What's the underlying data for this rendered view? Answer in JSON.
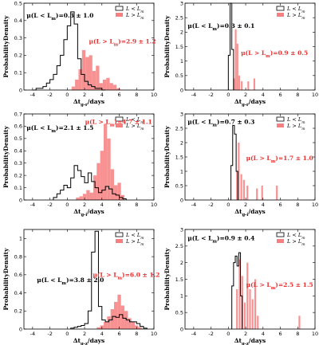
{
  "colors": {
    "low": "#000000",
    "high": "#f77f7f",
    "high_text": "#e8302f"
  },
  "chart_data": [
    {
      "type": "histogram",
      "xlim": [
        -5,
        10
      ],
      "ylim": [
        0,
        0.5
      ],
      "xticks": [
        -4,
        -2,
        0,
        2,
        4,
        6,
        8,
        10
      ],
      "yticks": [
        0,
        0.1,
        0.2,
        0.3,
        0.4,
        0.5
      ],
      "xlabel": "Δt_{g-r}/days",
      "ylabel": "ProbabilityDensity",
      "legend": [
        "L < L_m",
        "L > L_m"
      ],
      "annotations": [
        "μ(L < L_m)=0.3 ± 1.0",
        "μ(L > L_m)=2.9 ± 1.2"
      ],
      "series": [
        {
          "name": "L < L_m",
          "style": "step",
          "x": [
            -3.8,
            -3.4,
            -3.0,
            -2.6,
            -2.2,
            -1.8,
            -1.4,
            -1.0,
            -0.6,
            -0.2,
            0.2,
            0.6,
            1.0,
            1.4,
            1.8,
            2.2,
            2.6,
            3.0,
            3.4,
            3.8,
            4.2
          ],
          "values": [
            0,
            0.01,
            0.01,
            0.02,
            0.04,
            0.06,
            0.09,
            0.14,
            0.2,
            0.29,
            0.37,
            0.45,
            0.38,
            0.18,
            0.09,
            0.05,
            0.03,
            0.02,
            0.01,
            0.01,
            0
          ]
        },
        {
          "name": "L > L_m",
          "style": "filled",
          "x": [
            0.7,
            1.1,
            1.5,
            1.9,
            2.3,
            2.7,
            3.1,
            3.5,
            3.9,
            4.3,
            4.7,
            5.1,
            5.5,
            5.9
          ],
          "values": [
            0.02,
            0.06,
            0.12,
            0.23,
            0.19,
            0.2,
            0.11,
            0.14,
            0.04,
            0.06,
            0.07,
            0.04,
            0.03,
            0.01
          ]
        }
      ]
    },
    {
      "type": "histogram",
      "xlim": [
        -5,
        10
      ],
      "ylim": [
        0,
        3.0
      ],
      "xticks": [
        -4,
        -2,
        0,
        2,
        4,
        6,
        8,
        10
      ],
      "yticks": [
        0,
        0.5,
        1.0,
        1.5,
        2.0,
        2.5,
        3.0
      ],
      "xlabel": "Δt_{g-r}/days",
      "ylabel": "ProbabilityDensity",
      "legend": [
        "L < L_m",
        "L > L_m"
      ],
      "annotations": [
        "μ(L < L_m)=0.3 ± 0.1",
        "μ(L > L_m)=0.9 ± 0.5"
      ],
      "series": [
        {
          "name": "L < L_m",
          "style": "step",
          "x": [
            0.1,
            0.3,
            0.5
          ],
          "values": [
            1.2,
            3.0,
            1.4
          ]
        },
        {
          "name": "L > L_m",
          "style": "filled",
          "x": [
            0.65,
            0.85,
            1.05,
            1.25,
            1.55,
            2.3,
            3.0
          ],
          "values": [
            0.4,
            2.1,
            1.6,
            0.5,
            0.3,
            0.3,
            0.4
          ]
        }
      ]
    },
    {
      "type": "histogram",
      "xlim": [
        -5,
        10
      ],
      "ylim": [
        0,
        0.7
      ],
      "xticks": [
        -4,
        -2,
        0,
        2,
        4,
        6,
        8,
        10
      ],
      "yticks": [
        0,
        0.1,
        0.2,
        0.3,
        0.4,
        0.5,
        0.6,
        0.7
      ],
      "xlabel": "Δt_{g-i}/days",
      "ylabel": "ProbabilityDensity",
      "legend": [
        "L < L_m",
        "L > L_m"
      ],
      "annotations": [
        "μ(L < L_m)=2.1 ± 1.5",
        "μ(L > L_m)=4.7 ± 1.1"
      ],
      "series": [
        {
          "name": "L < L_m",
          "style": "step",
          "x": [
            -1.4,
            -1.0,
            -0.6,
            -0.2,
            0.2,
            0.6,
            1.0,
            1.4,
            1.8,
            2.2,
            2.6,
            3.0,
            3.4,
            3.8,
            4.2,
            4.6,
            5.0,
            5.4,
            5.8,
            6.2,
            6.6
          ],
          "values": [
            0.02,
            0.05,
            0.08,
            0.12,
            0.1,
            0.18,
            0.28,
            0.24,
            0.19,
            0.14,
            0.22,
            0.15,
            0.1,
            0.06,
            0.08,
            0.11,
            0.09,
            0.05,
            0.04,
            0.02,
            0.01
          ]
        },
        {
          "name": "L > L_m",
          "style": "filled",
          "x": [
            1.2,
            1.6,
            2.0,
            2.4,
            2.8,
            3.2,
            3.6,
            4.0,
            4.4,
            4.8,
            5.2,
            5.6,
            6.0,
            6.4
          ],
          "values": [
            0.02,
            0.03,
            0.05,
            0.08,
            0.06,
            0.2,
            0.3,
            0.4,
            0.62,
            0.5,
            0.25,
            0.12,
            0.14,
            0.04
          ]
        }
      ]
    },
    {
      "type": "histogram",
      "xlim": [
        -5,
        10
      ],
      "ylim": [
        0,
        3.0
      ],
      "xticks": [
        -4,
        -2,
        0,
        2,
        4,
        6,
        8,
        10
      ],
      "yticks": [
        0,
        0.5,
        1.0,
        1.5,
        2.0,
        2.5,
        3.0
      ],
      "xlabel": "Δt_{g-i}/days",
      "ylabel": "ProbabilityDensity",
      "legend": [
        "L < L_m",
        "L > L_m"
      ],
      "annotations": [
        "μ(L < L_m)=0.7 ± 0.3",
        "μ(L > L_m)=1.7 ± 1.0"
      ],
      "series": [
        {
          "name": "L < L_m",
          "style": "step",
          "x": [
            0.4,
            0.6,
            0.8,
            1.0
          ],
          "values": [
            1.2,
            2.6,
            2.3,
            1.0
          ]
        },
        {
          "name": "L > L_m",
          "style": "filled",
          "x": [
            1.0,
            1.2,
            1.5,
            1.8,
            2.2,
            3.3,
            3.9,
            5.6
          ],
          "values": [
            1.0,
            2.0,
            0.9,
            0.7,
            0.5,
            0.4,
            0.5,
            0.5
          ]
        }
      ]
    },
    {
      "type": "histogram",
      "xlim": [
        -5,
        10
      ],
      "ylim": [
        0,
        1.1
      ],
      "xticks": [
        -4,
        -2,
        0,
        2,
        4,
        6,
        8,
        10
      ],
      "yticks": [
        0,
        0.2,
        0.4,
        0.6,
        0.8,
        1.0
      ],
      "xlabel": "Δt_{g-z}/days",
      "ylabel": "ProbabilityDensity",
      "legend": [
        "L < L_m",
        "L > L_m"
      ],
      "annotations": [
        "μ(L < L_m)=3.8 ± 2.0",
        "μ(L > L_m)=6.0 ± 1.2"
      ],
      "series": [
        {
          "name": "L < L_m",
          "style": "step",
          "x": [
            0.6,
            1.0,
            1.4,
            1.8,
            2.2,
            2.6,
            3.0,
            3.4,
            3.8,
            4.2,
            4.6,
            5.0,
            5.4,
            5.8,
            6.2,
            6.6,
            7.0,
            7.4,
            7.8,
            8.2,
            8.6,
            9.0
          ],
          "values": [
            0.01,
            0.02,
            0.03,
            0.04,
            0.06,
            0.2,
            0.85,
            1.08,
            0.25,
            0.1,
            0.08,
            0.1,
            0.14,
            0.13,
            0.16,
            0.12,
            0.1,
            0.08,
            0.08,
            0.06,
            0.03,
            0.01
          ]
        },
        {
          "name": "L > L_m",
          "style": "filled",
          "x": [
            3.6,
            4.0,
            4.4,
            4.8,
            5.2,
            5.6,
            6.0,
            6.4,
            6.8,
            7.2,
            7.6,
            8.0,
            8.4
          ],
          "values": [
            0.02,
            0.04,
            0.08,
            0.14,
            0.22,
            0.3,
            0.38,
            0.26,
            0.2,
            0.12,
            0.08,
            0.04,
            0.02
          ]
        }
      ]
    },
    {
      "type": "histogram",
      "xlim": [
        -5,
        10
      ],
      "ylim": [
        0,
        3.0
      ],
      "xticks": [
        -4,
        -2,
        0,
        2,
        4,
        6,
        8,
        10
      ],
      "yticks": [
        0,
        0.5,
        1.0,
        1.5,
        2.0,
        2.5,
        3.0
      ],
      "xlabel": "Δt_{g-z}/days",
      "ylabel": "ProbabilityDensity",
      "legend": [
        "L < L_m",
        "L > L_m"
      ],
      "annotations": [
        "μ(L < L_m)=0.9 ± 0.4",
        "μ(L > L_m)=2.5 ± 1.5"
      ],
      "series": [
        {
          "name": "L < L_m",
          "style": "step",
          "x": [
            0.5,
            0.7,
            0.9,
            1.1,
            1.3,
            1.5
          ],
          "values": [
            1.3,
            2.0,
            2.2,
            1.9,
            2.3,
            1.0
          ]
        },
        {
          "name": "L > L_m",
          "style": "filled",
          "x": [
            1.0,
            1.3,
            1.6,
            1.9,
            2.2,
            2.5,
            2.8,
            3.1,
            3.4,
            8.2
          ],
          "values": [
            1.2,
            2.1,
            1.6,
            0.8,
            2.0,
            1.2,
            0.9,
            1.5,
            0.4,
            0.4
          ]
        }
      ]
    }
  ]
}
